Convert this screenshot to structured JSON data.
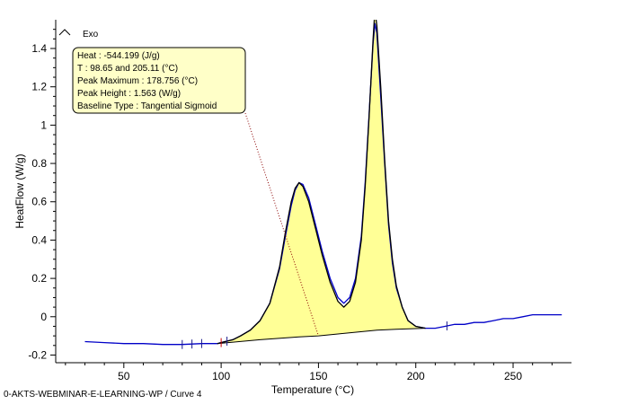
{
  "footer_text": "0-AKTS-WEBMINAR-E-LEARNING-WP / Curve 4",
  "legend": {
    "label": "Exo"
  },
  "info_box": {
    "lines": [
      "Heat :  -544.199 (J/g)",
      "T : 98.65 and 205.11 (°C)",
      "Peak Maximum :  178.756 (°C)",
      "Peak Height :  1.563 (W/g)",
      "Baseline Type :  Tangential Sigmoid"
    ]
  },
  "colors": {
    "curve": "#0000c8",
    "fit": "#000000",
    "fill": "#ffff96",
    "box": "#ffffc8",
    "leader": "#8b0000",
    "marker": "#c80000"
  },
  "chart_data": {
    "type": "line",
    "xlabel": "Temperature (°C)",
    "ylabel": "HeatFlow (W/g)",
    "xlim": [
      15,
      280
    ],
    "ylim": [
      -0.24,
      1.55
    ],
    "x_ticks": [
      50,
      100,
      150,
      200,
      250
    ],
    "y_ticks": [
      -0.2,
      0,
      0.2,
      0.4,
      0.6,
      0.8,
      1,
      1.2,
      1.4
    ],
    "y_tick_labels": [
      "-0.2",
      "0",
      "0.2",
      "0.4",
      "0.6",
      "0.8",
      "1",
      "1.2",
      "1.4"
    ],
    "grid": false,
    "series": [
      {
        "x": [
          30,
          40,
          50,
          60,
          70,
          80,
          90,
          98,
          102,
          106,
          110,
          115,
          120,
          125,
          130,
          133,
          136,
          138,
          140,
          142,
          145,
          148,
          152,
          156,
          160,
          163,
          166,
          169,
          172,
          174,
          176,
          178,
          179,
          180,
          182,
          184,
          186,
          188,
          190,
          193,
          196,
          200,
          205,
          210,
          215,
          220,
          225,
          230,
          235,
          240,
          245,
          250,
          255,
          260,
          265,
          270,
          275
        ],
        "y": [
          -0.13,
          -0.135,
          -0.14,
          -0.14,
          -0.145,
          -0.145,
          -0.14,
          -0.14,
          -0.13,
          -0.12,
          -0.1,
          -0.07,
          -0.02,
          0.07,
          0.25,
          0.42,
          0.58,
          0.66,
          0.7,
          0.69,
          0.62,
          0.5,
          0.34,
          0.2,
          0.1,
          0.07,
          0.1,
          0.2,
          0.42,
          0.7,
          1.05,
          1.42,
          1.53,
          1.48,
          1.15,
          0.8,
          0.48,
          0.28,
          0.15,
          0.05,
          -0.02,
          -0.05,
          -0.06,
          -0.06,
          -0.05,
          -0.04,
          -0.04,
          -0.03,
          -0.03,
          -0.02,
          -0.01,
          -0.01,
          0.0,
          0.01,
          0.01,
          0.01,
          0.01
        ]
      },
      {
        "x": [
          98,
          102,
          106,
          110,
          115,
          120,
          125,
          130,
          133,
          136,
          138,
          140,
          142,
          145,
          148,
          152,
          156,
          160,
          163,
          166,
          169,
          172,
          174,
          176,
          178,
          179,
          180,
          182,
          184,
          186,
          188,
          190,
          193,
          196,
          200,
          205
        ],
        "y": [
          -0.14,
          -0.13,
          -0.12,
          -0.1,
          -0.07,
          -0.02,
          0.07,
          0.26,
          0.44,
          0.6,
          0.67,
          0.7,
          0.68,
          0.6,
          0.48,
          0.32,
          0.18,
          0.08,
          0.05,
          0.08,
          0.18,
          0.4,
          0.68,
          1.04,
          1.44,
          1.6,
          1.52,
          1.2,
          0.82,
          0.5,
          0.3,
          0.16,
          0.05,
          -0.02,
          -0.05,
          -0.06
        ]
      }
    ],
    "baseline": {
      "x": [
        98,
        120,
        140,
        150,
        160,
        170,
        180,
        190,
        200,
        205
      ],
      "y": [
        -0.14,
        -0.12,
        -0.105,
        -0.1,
        -0.09,
        -0.08,
        -0.07,
        -0.065,
        -0.062,
        -0.06
      ]
    },
    "markers_x": [
      80,
      85,
      90,
      100,
      103,
      216
    ]
  }
}
